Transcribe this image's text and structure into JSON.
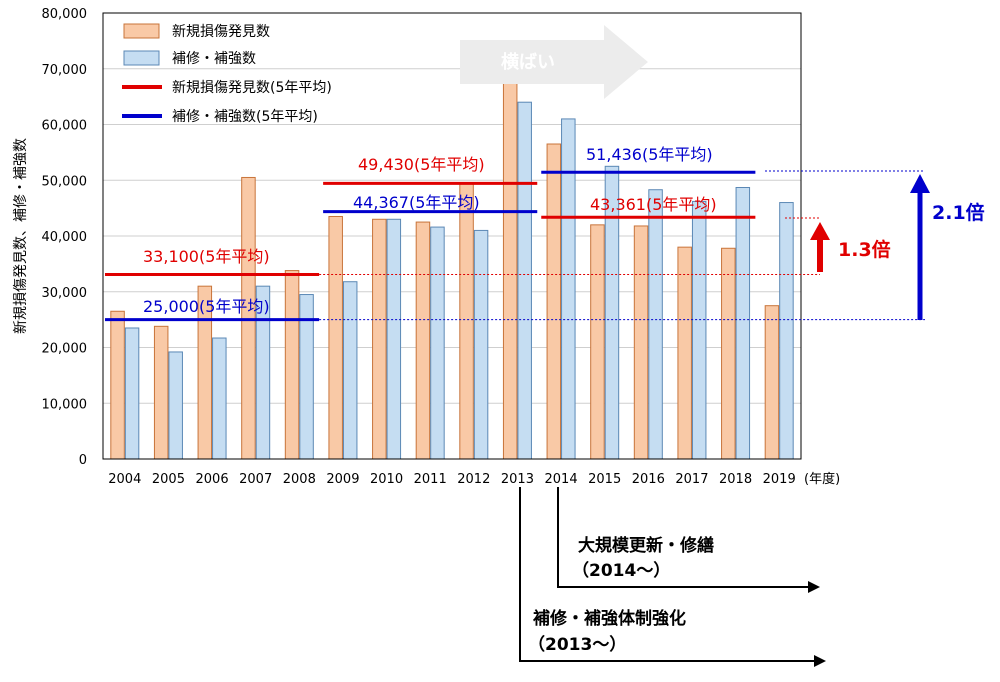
{
  "chart_data": {
    "type": "bar",
    "categories": [
      "2004",
      "2005",
      "2006",
      "2007",
      "2008",
      "2009",
      "2010",
      "2011",
      "2012",
      "2013",
      "2014",
      "2015",
      "2016",
      "2017",
      "2018",
      "2019"
    ],
    "x_unit": "(年度)",
    "ylabel": "新規損傷発見数、補修・補強数",
    "ylim": [
      0,
      80000
    ],
    "yticks": [
      "0",
      "10,000",
      "20,000",
      "30,000",
      "40,000",
      "50,000",
      "60,000",
      "70,000",
      "80,000"
    ],
    "series": [
      {
        "name": "新規損傷発見数",
        "color": "#f9c9a6",
        "stroke": "#c8743a",
        "values": [
          26500,
          23800,
          31000,
          50500,
          33800,
          43500,
          43000,
          42500,
          49500,
          67500,
          56500,
          42000,
          41800,
          38000,
          37800,
          27500
        ]
      },
      {
        "name": "補修・補強数",
        "color": "#c5ddf2",
        "stroke": "#5b88b5",
        "values": [
          23500,
          19200,
          21700,
          31000,
          29500,
          31800,
          43000,
          41600,
          41000,
          64000,
          61000,
          52500,
          48300,
          46200,
          48700,
          46000
        ]
      }
    ],
    "averages": [
      {
        "series": "新規損傷発見数",
        "label": "33,100(5年平均)",
        "value": 33100,
        "from": "2004",
        "to": "2008",
        "color": "#e00000"
      },
      {
        "series": "補修・補強数",
        "label": "25,000(5年平均)",
        "value": 25000,
        "from": "2004",
        "to": "2008",
        "color": "#0000cc"
      },
      {
        "series": "新規損傷発見数",
        "label": "49,430(5年平均)",
        "value": 49430,
        "from": "2009",
        "to": "2013",
        "color": "#e00000"
      },
      {
        "series": "補修・補強数",
        "label": "44,367(5年平均)",
        "value": 44367,
        "from": "2009",
        "to": "2013",
        "color": "#0000cc"
      },
      {
        "series": "補修・補強数",
        "label": "51,436(5年平均)",
        "value": 51436,
        "from": "2014",
        "to": "2018",
        "color": "#0000cc"
      },
      {
        "series": "新規損傷発見数",
        "label": "43,361(5年平均)",
        "value": 43361,
        "from": "2014",
        "to": "2018",
        "color": "#e00000"
      }
    ],
    "legend": [
      {
        "label": "新規損傷発見数",
        "kind": "bar",
        "color": "#f9c9a6",
        "stroke": "#c8743a"
      },
      {
        "label": "補修・補強数",
        "kind": "bar",
        "color": "#c5ddf2",
        "stroke": "#5b88b5"
      },
      {
        "label": "新規損傷発見数(5年平均)",
        "kind": "line",
        "color": "#e00000"
      },
      {
        "label": "補修・補強数(5年平均)",
        "kind": "line",
        "color": "#0000cc"
      }
    ],
    "legend_position": "top-left",
    "grid": true,
    "annotations": {
      "flat_arrow": "横ばい",
      "ratio_red": "1.3倍",
      "ratio_blue": "2.1倍",
      "event1_title": "大規模更新・修繕",
      "event1_period": "（2014～）",
      "event2_title": "補修・補強体制強化",
      "event2_period": "（2013～）"
    }
  }
}
